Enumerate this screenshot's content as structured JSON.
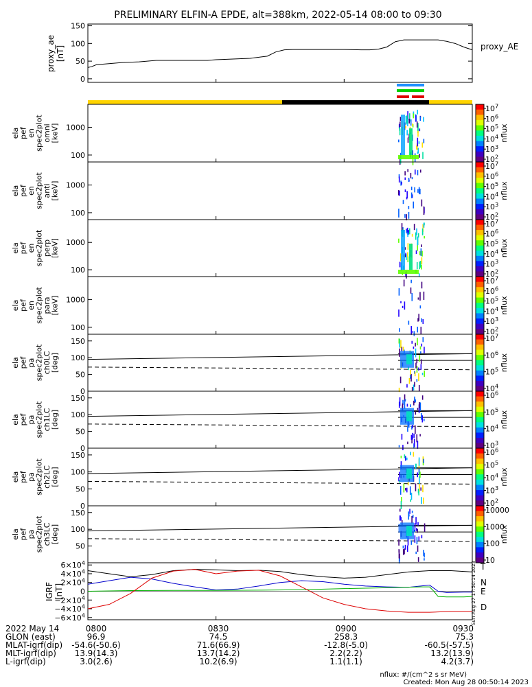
{
  "title": "PRELIMINARY ELFIN-A EPDE, alt=388km, 2022-05-14 08:00 to 09:30",
  "side_timestamp": "Sun Aug 27 17:50:14 2023",
  "colors": {
    "yellow": "#ffd400",
    "black": "#000000",
    "blue": "#1e90ff",
    "green": "#00d000",
    "red": "#e00000",
    "N": "#0000cc",
    "E": "#00b000",
    "D": "#dd0000"
  },
  "chart_data": [
    {
      "type": "line",
      "panel": "proxy_ae",
      "ylabel": "proxy_ae\n[nT]",
      "legend": "proxy_AE",
      "yticks": [
        "150",
        "100",
        "50",
        "0"
      ],
      "ylim": [
        -10,
        155
      ],
      "x": [
        0,
        1,
        2,
        4,
        8,
        12,
        16,
        20,
        24,
        28,
        30,
        34,
        38,
        42,
        44,
        46,
        48,
        52,
        56,
        60,
        64,
        66,
        68,
        70,
        72,
        74,
        76,
        78,
        80,
        82,
        84,
        86,
        88,
        90
      ],
      "y": [
        32,
        35,
        40,
        42,
        46,
        48,
        52,
        52,
        52,
        52,
        54,
        56,
        58,
        64,
        76,
        82,
        83,
        83,
        83,
        83,
        82,
        82,
        84,
        90,
        105,
        110,
        110,
        110,
        110,
        110,
        106,
        100,
        90,
        82
      ]
    },
    {
      "type": "heatmap",
      "panel": "en_omni",
      "ylabel": [
        "ela",
        "pef",
        "en",
        "spec2plot",
        "omni",
        "[keV]"
      ],
      "yticks": [
        "1000",
        "100"
      ],
      "cbar_ticks": [
        "10^7",
        "10^6",
        "10^5",
        "10^4",
        "10^3",
        "10^2"
      ],
      "cbar_label": "nflux"
    },
    {
      "type": "heatmap",
      "panel": "en_anti",
      "ylabel": [
        "ela",
        "pef",
        "en",
        "spec2plot",
        "anti",
        "[keV]"
      ],
      "yticks": [
        "1000",
        "100"
      ],
      "cbar_ticks": [
        "10^7",
        "10^6",
        "10^5",
        "10^4",
        "10^3",
        "10^2"
      ],
      "cbar_label": "nflux"
    },
    {
      "type": "heatmap",
      "panel": "en_perp",
      "ylabel": [
        "ela",
        "pef",
        "en",
        "spec2plot",
        "perp",
        "[keV]"
      ],
      "yticks": [
        "1000",
        "100"
      ],
      "cbar_ticks": [
        "10^7",
        "10^6",
        "10^5",
        "10^4",
        "10^3",
        "10^2"
      ],
      "cbar_label": "nflux"
    },
    {
      "type": "heatmap",
      "panel": "en_para",
      "ylabel": [
        "ela",
        "pef",
        "en",
        "spec2plot",
        "para",
        "[keV]"
      ],
      "yticks": [
        "1000",
        "100"
      ],
      "cbar_ticks": [
        "10^7",
        "10^6",
        "10^5",
        "10^4",
        "10^3",
        "10^2"
      ],
      "cbar_label": "nflux"
    },
    {
      "type": "heatmap",
      "panel": "pa_ch0LC",
      "ylabel": [
        "ela",
        "pef",
        "pa",
        "spec2plot",
        "ch0LC",
        "[deg]"
      ],
      "yticks": [
        "150",
        "100",
        "50",
        "0"
      ],
      "cbar_ticks": [
        "10^7",
        "10^6",
        "10^5",
        "10^4"
      ],
      "cbar_label": "nflux"
    },
    {
      "type": "heatmap",
      "panel": "pa_ch1LC",
      "ylabel": [
        "ela",
        "pef",
        "pa",
        "spec2plot",
        "ch1LC",
        "[deg]"
      ],
      "yticks": [
        "150",
        "100",
        "50",
        "0"
      ],
      "cbar_ticks": [
        "10^6",
        "10^5",
        "10^4",
        "10^3"
      ],
      "cbar_label": "nflux"
    },
    {
      "type": "heatmap",
      "panel": "pa_ch2LC",
      "ylabel": [
        "ela",
        "pef",
        "pa",
        "spec2plot",
        "ch2LC",
        "[deg]"
      ],
      "yticks": [
        "150",
        "100",
        "50",
        "0"
      ],
      "cbar_ticks": [
        "10^6",
        "10^5",
        "10^4",
        "10^3",
        "10^2"
      ],
      "cbar_label": "nflux"
    },
    {
      "type": "heatmap",
      "panel": "pa_ch3LC",
      "ylabel": [
        "ela",
        "pef",
        "pa",
        "spec2plot",
        "ch3LC",
        "[deg]"
      ],
      "yticks": [
        "150",
        "100",
        "50"
      ],
      "cbar_ticks": [
        "10000",
        "1000",
        "100",
        "10"
      ],
      "cbar_label": "nflux"
    },
    {
      "type": "line",
      "panel": "igrf",
      "ylabel": "IGRF\n[nT]",
      "ylim": [
        -65000,
        65000
      ],
      "yticks": [
        "6×10^4",
        "4×10^4",
        "2×10^4",
        "0",
        "−2×10^4",
        "−4×10^4",
        "−6×10^4"
      ],
      "series": [
        {
          "name": "T",
          "x": [
            0,
            5,
            10,
            15,
            20,
            25,
            30,
            35,
            40,
            45,
            50,
            55,
            60,
            65,
            70,
            75,
            80,
            85,
            90
          ],
          "y": [
            47000,
            40000,
            33000,
            38000,
            47000,
            50000,
            49000,
            47000,
            48000,
            45000,
            38000,
            33000,
            30000,
            32000,
            38000,
            44000,
            47000,
            47000,
            44000
          ]
        },
        {
          "name": "N",
          "x": [
            0,
            5,
            10,
            15,
            20,
            25,
            30,
            35,
            40,
            45,
            50,
            55,
            60,
            65,
            70,
            75,
            80,
            82,
            84,
            88,
            90
          ],
          "y": [
            16000,
            24000,
            32000,
            28000,
            18000,
            10000,
            3000,
            5000,
            12000,
            20000,
            24000,
            22000,
            16000,
            12000,
            10000,
            9000,
            14000,
            0,
            -3000,
            -2000,
            -2000
          ]
        },
        {
          "name": "E",
          "x": [
            0,
            10,
            20,
            30,
            40,
            50,
            60,
            70,
            78,
            80,
            81,
            82,
            84,
            86,
            88,
            90
          ],
          "y": [
            0,
            1500,
            2000,
            2000,
            2500,
            3500,
            6000,
            8000,
            10000,
            10000,
            0,
            -12000,
            -13000,
            -13000,
            -13000,
            -12000
          ]
        },
        {
          "name": "D",
          "x": [
            0,
            5,
            10,
            15,
            20,
            25,
            30,
            35,
            40,
            45,
            50,
            55,
            60,
            65,
            70,
            75,
            80,
            85,
            90
          ],
          "y": [
            -40000,
            -30000,
            -5000,
            30000,
            46000,
            50000,
            40000,
            46000,
            48000,
            35000,
            10000,
            -15000,
            -30000,
            -40000,
            -45000,
            -48000,
            -48000,
            -46000,
            -46000
          ]
        }
      ]
    }
  ],
  "x_ticks": [
    "0800",
    "0830",
    "0900",
    "0930"
  ],
  "footer": {
    "date": "2022 May 14",
    "rows": [
      {
        "label": "GLON (east)",
        "vals": [
          "96.9",
          "74.5",
          "258.3",
          "75.3"
        ]
      },
      {
        "label": "MLAT-igrf(dip)",
        "vals": [
          "-54.6(-50.6)",
          "71.6(66.9)",
          "-12.8(-5.0)",
          "-60.5(-57.5)"
        ]
      },
      {
        "label": "MLT-igrf(dip)",
        "vals": [
          "13.9(14.3)",
          "13.7(14.2)",
          "2.2(2.2)",
          "13.2(13.9)"
        ]
      },
      {
        "label": "L-igrf(dip)",
        "vals": [
          "3.0(2.6)",
          "10.2(6.9)",
          "1.1(1.1)",
          "4.2(3.7)"
        ]
      }
    ],
    "units_note": "nflux: #/(cm^2 s sr MeV)",
    "created": "Created: Mon Aug 28 00:50:14 2023"
  }
}
